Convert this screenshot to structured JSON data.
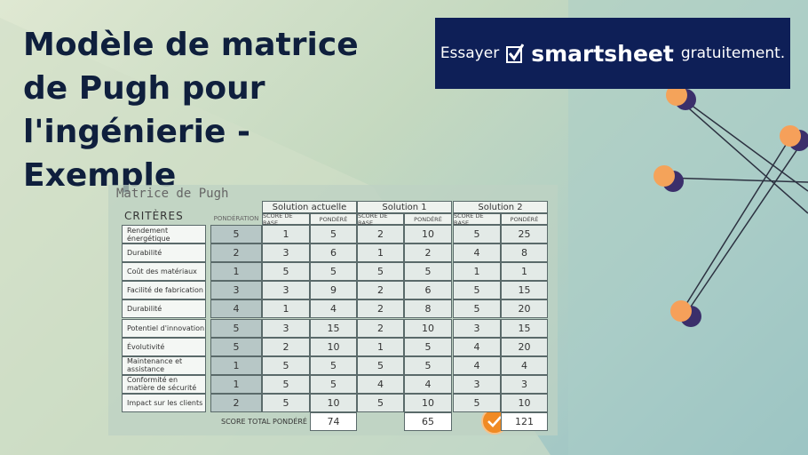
{
  "header": {
    "title": "Modèle de matrice de Pugh pour l'ingénierie - Exemple"
  },
  "banner": {
    "prefix": "Essayer",
    "brand": "smartsheet",
    "suffix": "gratuitement."
  },
  "table": {
    "caption": "Matrice de Pugh",
    "criteria_label": "CRITÈRES",
    "weight_label": "PONDÉRATION",
    "solutions": [
      {
        "name": "Solution actuelle",
        "base_label": "SCORE DE BASE",
        "weighted_label": "PONDÉRÉ"
      },
      {
        "name": "Solution 1",
        "base_label": "SCORE DE BASE",
        "weighted_label": "PONDÉRÉ"
      },
      {
        "name": "Solution 2",
        "base_label": "SCORE DE BASE",
        "weighted_label": "PONDÉRÉ"
      }
    ],
    "rows": [
      {
        "criterion": "Rendement énergétique",
        "weight": 5,
        "scores": [
          [
            1,
            5
          ],
          [
            2,
            10
          ],
          [
            5,
            25
          ]
        ]
      },
      {
        "criterion": "Durabilité",
        "weight": 2,
        "scores": [
          [
            3,
            6
          ],
          [
            1,
            2
          ],
          [
            4,
            8
          ]
        ]
      },
      {
        "criterion": "Coût des matériaux",
        "weight": 1,
        "scores": [
          [
            5,
            5
          ],
          [
            5,
            5
          ],
          [
            1,
            1
          ]
        ]
      },
      {
        "criterion": "Facilité de fabrication",
        "weight": 3,
        "scores": [
          [
            3,
            9
          ],
          [
            2,
            6
          ],
          [
            5,
            15
          ]
        ]
      },
      {
        "criterion": "Durabilité",
        "weight": 4,
        "scores": [
          [
            1,
            4
          ],
          [
            2,
            8
          ],
          [
            5,
            20
          ]
        ]
      },
      {
        "criterion": "Potentiel d'innovation",
        "weight": 5,
        "scores": [
          [
            3,
            15
          ],
          [
            2,
            10
          ],
          [
            3,
            15
          ]
        ]
      },
      {
        "criterion": "Évolutivité",
        "weight": 5,
        "scores": [
          [
            2,
            10
          ],
          [
            1,
            5
          ],
          [
            4,
            20
          ]
        ]
      },
      {
        "criterion": "Maintenance et assistance",
        "weight": 1,
        "scores": [
          [
            5,
            5
          ],
          [
            5,
            5
          ],
          [
            4,
            4
          ]
        ]
      },
      {
        "criterion": "Conformité en matière de sécurité",
        "weight": 1,
        "scores": [
          [
            5,
            5
          ],
          [
            4,
            4
          ],
          [
            3,
            3
          ]
        ]
      },
      {
        "criterion": "Impact sur les clients",
        "weight": 2,
        "scores": [
          [
            5,
            10
          ],
          [
            5,
            10
          ],
          [
            5,
            10
          ]
        ]
      }
    ],
    "total_label": "SCORE TOTAL PONDÉRÉ",
    "totals": [
      74,
      65,
      121
    ]
  }
}
